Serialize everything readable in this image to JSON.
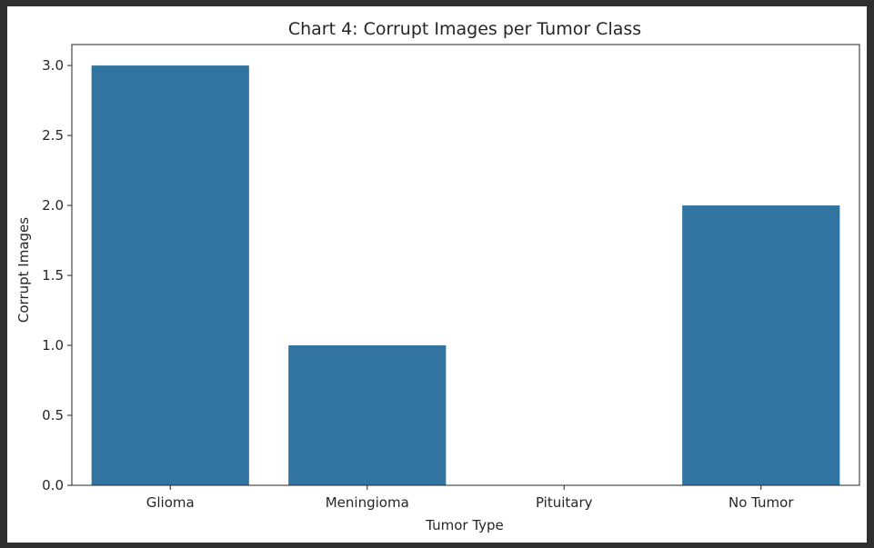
{
  "chart_data": {
    "type": "bar",
    "title": "Chart 4: Corrupt Images per Tumor Class",
    "xlabel": "Tumor Type",
    "ylabel": "Corrupt Images",
    "categories": [
      "Glioma",
      "Meningioma",
      "Pituitary",
      "No Tumor"
    ],
    "values": [
      3,
      1,
      0,
      2
    ],
    "ylim": [
      0,
      3.15
    ],
    "yticks": [
      "0.0",
      "0.5",
      "1.0",
      "1.5",
      "2.0",
      "2.5",
      "3.0"
    ],
    "grid": false,
    "legend": "none",
    "bar_color": "#3274a1"
  }
}
